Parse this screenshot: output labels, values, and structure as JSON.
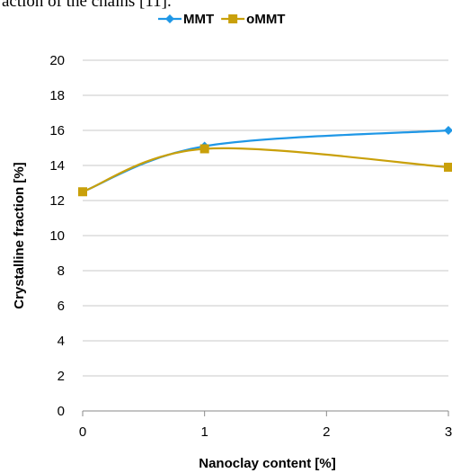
{
  "header_fragment": "action of the chains [11].",
  "chart_data": {
    "type": "line",
    "xlabel": "Nanoclay content [%]",
    "ylabel": "Crystalline fraction [%]",
    "xlim": [
      0,
      3
    ],
    "ylim": [
      0,
      20
    ],
    "xticks": [
      0,
      1,
      2,
      3
    ],
    "yticks": [
      0,
      2,
      4,
      6,
      8,
      10,
      12,
      14,
      16,
      18,
      20
    ],
    "grid": "horizontal",
    "legend": "top-center",
    "series": [
      {
        "name": "MMT",
        "color": "#1f97e6",
        "marker": "diamond",
        "x": [
          0,
          1,
          3
        ],
        "y": [
          12.5,
          15.1,
          16.0
        ]
      },
      {
        "name": "oMMT",
        "color": "#c9a00a",
        "marker": "square",
        "x": [
          0,
          1,
          3
        ],
        "y": [
          12.5,
          14.95,
          13.9
        ]
      }
    ]
  }
}
